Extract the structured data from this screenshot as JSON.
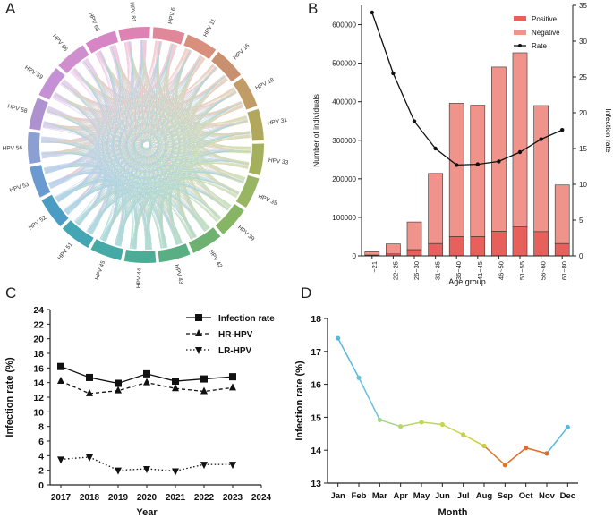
{
  "panel_labels": [
    "A",
    "B",
    "C",
    "D"
  ],
  "chart_data": [
    {
      "panel": "A",
      "type": "chord",
      "segments": [
        {
          "label": "HPV 56",
          "color": "#8c9fd2"
        },
        {
          "label": "HPV 58",
          "color": "#ad92cf"
        },
        {
          "label": "HPV 59",
          "color": "#c492d4"
        },
        {
          "label": "HPV 66",
          "color": "#cf8fcf"
        },
        {
          "label": "HPV 68",
          "color": "#d885c5"
        },
        {
          "label": "HPV 81",
          "color": "#de82b3"
        },
        {
          "label": "HPV 6",
          "color": "#e0889a"
        },
        {
          "label": "HPV 11",
          "color": "#d8907c"
        },
        {
          "label": "HPV 16",
          "color": "#c9906f"
        },
        {
          "label": "HPV 18",
          "color": "#c29c66"
        },
        {
          "label": "HPV 31",
          "color": "#b1a85e"
        },
        {
          "label": "HPV 33",
          "color": "#a4b05c"
        },
        {
          "label": "HPV 35",
          "color": "#98b562"
        },
        {
          "label": "HPV 39",
          "color": "#86b664"
        },
        {
          "label": "HPV 42",
          "color": "#6eb170"
        },
        {
          "label": "HPV 43",
          "color": "#5aae84"
        },
        {
          "label": "HPV 44",
          "color": "#4dac96"
        },
        {
          "label": "HPV 45",
          "color": "#45a9a6"
        },
        {
          "label": "HPV 51",
          "color": "#44a5b4"
        },
        {
          "label": "HPV 52",
          "color": "#4b9cc4"
        },
        {
          "label": "HPV 53",
          "color": "#6a9ad0"
        }
      ]
    },
    {
      "panel": "B",
      "type": "bar",
      "categories": [
        "~21",
        "22~25",
        "26~30",
        "31~35",
        "36~40",
        "41~45",
        "46~50",
        "51~55",
        "56~60",
        "61~80"
      ],
      "series": [
        {
          "name": "Positive",
          "color": "#e8605c",
          "values": [
            2000,
            5000,
            16000,
            32000,
            50000,
            50000,
            64000,
            75000,
            63000,
            32000
          ]
        },
        {
          "name": "Negative",
          "color": "#f0938a",
          "values": [
            9000,
            26000,
            72000,
            182000,
            346000,
            341000,
            426000,
            452000,
            327000,
            152000
          ]
        },
        {
          "name": "Rate",
          "color": "#111111",
          "values": [
            34.0,
            25.5,
            18.8,
            15.0,
            12.7,
            12.8,
            13.2,
            14.5,
            16.3,
            17.6
          ]
        }
      ],
      "xlabel": "Age group",
      "ylabel": "Number of individuals",
      "y2label": "Infection rate",
      "ylim": [
        0,
        650000
      ],
      "y2lim": [
        0,
        35
      ],
      "yticks": [
        0,
        100000,
        200000,
        300000,
        400000,
        500000,
        600000
      ],
      "y2ticks": [
        0,
        5,
        10,
        15,
        20,
        25,
        30,
        35
      ],
      "legend": "top-right"
    },
    {
      "panel": "C",
      "type": "line",
      "x": [
        2017,
        2018,
        2019,
        2020,
        2021,
        2022,
        2023
      ],
      "xticks": [
        2017,
        2018,
        2019,
        2020,
        2021,
        2022,
        2023,
        2024
      ],
      "series": [
        {
          "name": "Infection rate",
          "marker": "square",
          "dash": "solid",
          "values": [
            16.2,
            14.7,
            13.9,
            15.2,
            14.2,
            14.5,
            14.8
          ]
        },
        {
          "name": "HR-HPV",
          "marker": "triangle-up",
          "dash": "dashed",
          "values": [
            14.2,
            12.5,
            12.9,
            14.0,
            13.2,
            12.8,
            13.3
          ]
        },
        {
          "name": "LR-HPV",
          "marker": "triangle-down",
          "dash": "dotted",
          "values": [
            3.5,
            3.8,
            2.0,
            2.2,
            1.9,
            2.8,
            2.8
          ]
        }
      ],
      "xlabel": "Year",
      "ylabel": "Infection rate  (%)",
      "ylim": [
        0,
        24
      ],
      "yticks": [
        0,
        2,
        4,
        6,
        8,
        10,
        12,
        14,
        16,
        18,
        20,
        22,
        24
      ],
      "legend": "top-right"
    },
    {
      "panel": "D",
      "type": "line",
      "categories": [
        "Jan",
        "Feb",
        "Mar",
        "Apr",
        "May",
        "Jun",
        "Jul",
        "Aug",
        "Sep",
        "Oct",
        "Nov",
        "Dec"
      ],
      "values": [
        17.4,
        16.2,
        14.92,
        14.72,
        14.85,
        14.78,
        14.47,
        14.13,
        13.55,
        14.07,
        13.9,
        14.7
      ],
      "point_colors": [
        "#5ab8e0",
        "#6cc0de",
        "#a3d48a",
        "#b5d86a",
        "#bdd65e",
        "#c6d650",
        "#c7d144",
        "#c8c83e",
        "#d87a2e",
        "#e46a2a",
        "#e46a2a",
        "#5ab8e0"
      ],
      "xlabel": "Month",
      "ylabel": "Infection rate (%)",
      "ylim": [
        13,
        18
      ],
      "yticks": [
        13,
        14,
        15,
        16,
        17,
        18
      ]
    }
  ]
}
